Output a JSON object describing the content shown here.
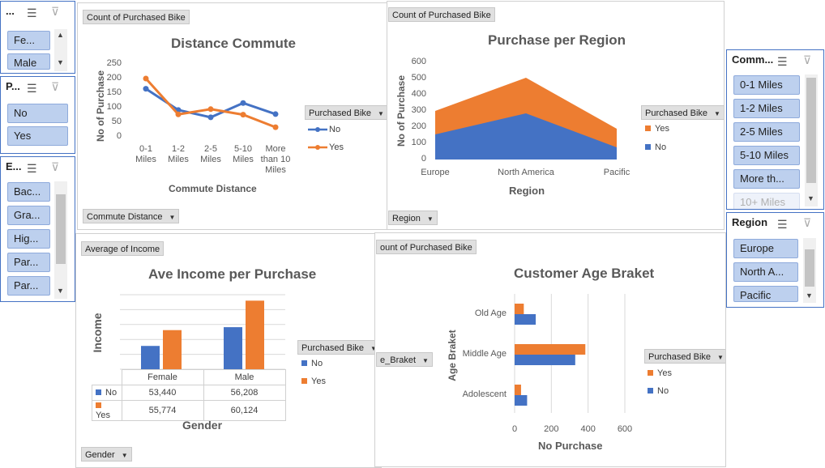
{
  "colors": {
    "no": "#4472c4",
    "yes": "#ed7d31"
  },
  "slicers": {
    "gender": {
      "title": "...",
      "items": [
        "Fe...",
        "Male"
      ]
    },
    "purchased": {
      "title": "P...",
      "items": [
        "No",
        "Yes"
      ]
    },
    "education": {
      "title": "E...",
      "items": [
        "Bac...",
        "Gra...",
        "Hig...",
        "Par...",
        "Par..."
      ]
    },
    "commute": {
      "title": "Comm...",
      "items": [
        "0-1 Miles",
        "1-2 Miles",
        "2-5 Miles",
        "5-10 Miles",
        "More th...",
        "10+ Miles"
      ]
    },
    "region": {
      "title": "Region",
      "items": [
        "Europe",
        "North A...",
        "Pacific"
      ]
    }
  },
  "charts": {
    "distance": {
      "value_button": "Count of Purchased Bike",
      "axis_button": "Commute Distance",
      "legend_button": "Purchased Bike",
      "chart_data": {
        "type": "line",
        "title": "Distance Commute",
        "xlabel": "Commute Distance",
        "ylabel": "No of Purchase",
        "categories": [
          "0-1 Miles",
          "1-2 Miles",
          "2-5 Miles",
          "5-10 Miles",
          "More than 10 Miles"
        ],
        "category_lines": [
          [
            "0-1",
            "Miles"
          ],
          [
            "1-2",
            "Miles"
          ],
          [
            "2-5",
            "Miles"
          ],
          [
            "5-10",
            "Miles"
          ],
          [
            "More",
            "than 10",
            "Miles"
          ]
        ],
        "yticks": [
          "250",
          "200",
          "150",
          "100",
          "50",
          "0"
        ],
        "ylim": [
          0,
          250
        ],
        "series": [
          {
            "name": "No",
            "values": [
              165,
              92,
              67,
              116,
              78
            ]
          },
          {
            "name": "Yes",
            "values": [
              200,
              77,
              95,
              76,
              33
            ]
          }
        ]
      }
    },
    "region": {
      "value_button": "Count of Purchased Bike",
      "axis_button": "Region",
      "legend_button": "Purchased Bike",
      "chart_data": {
        "type": "area",
        "title": "Purchase per Region",
        "xlabel": "Region",
        "ylabel": "No of Purchase",
        "categories": [
          "Europe",
          "North America",
          "Pacific"
        ],
        "yticks": [
          "600",
          "500",
          "400",
          "300",
          "200",
          "100",
          "0"
        ],
        "ylim": [
          0,
          600
        ],
        "series": [
          {
            "name": "No",
            "values": [
              155,
              285,
              75
            ]
          },
          {
            "name": "Yes",
            "values": [
              300,
              505,
              190
            ]
          }
        ]
      }
    },
    "income": {
      "value_button": "Average of Income",
      "axis_button": "Gender",
      "legend_button": "Purchased Bike",
      "chart_data": {
        "type": "bar",
        "title": "Ave Income per Purchase",
        "xlabel": "Gender",
        "ylabel": "Income",
        "categories": [
          "Female",
          "Male"
        ],
        "series": [
          {
            "name": "No",
            "values": [
              53440,
              56208
            ],
            "labels": [
              "53,440",
              "56,208"
            ]
          },
          {
            "name": "Yes",
            "values": [
              55774,
              60124
            ],
            "labels": [
              "55,774",
              "60,124"
            ]
          }
        ]
      }
    },
    "age": {
      "value_button": "ount of Purchased Bike",
      "axis_button": "e_Braket",
      "legend_button": "Purchased Bike",
      "chart_data": {
        "type": "bar",
        "title": "Customer Age Braket",
        "xlabel": "No Purchase",
        "ylabel": "Age Braket",
        "categories": [
          "Old Age",
          "Middle Age",
          "Adolescent"
        ],
        "xticks": [
          "0",
          "200",
          "400",
          "600"
        ],
        "xlim": [
          0,
          600
        ],
        "series": [
          {
            "name": "Yes",
            "values": [
              50,
              385,
              35
            ]
          },
          {
            "name": "No",
            "values": [
              115,
              330,
              68
            ]
          }
        ]
      }
    }
  }
}
